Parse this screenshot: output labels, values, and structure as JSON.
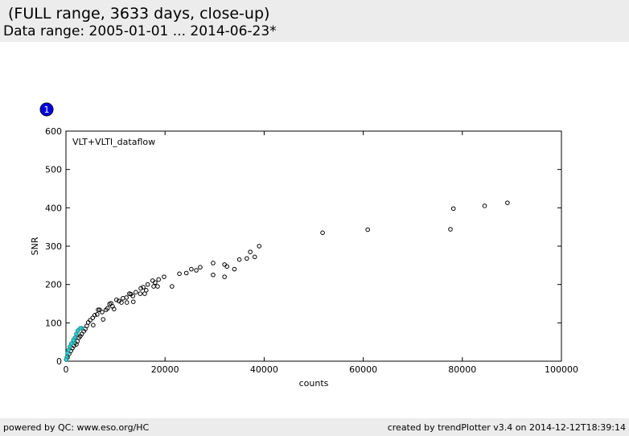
{
  "header": {
    "title": "(FULL range, 3633 days, close-up)",
    "subtitle": "Data range: 2005-01-01 ... 2014-06-23*"
  },
  "badge": "1",
  "footer": {
    "left": "powered by QC: www.eso.org/HC",
    "right": "created by trendPlotter v3.4 on 2014-12-12T18:39:14"
  },
  "chart_data": {
    "type": "scatter",
    "annotation": "VLT+VLTI_dataflow",
    "x_label": "counts",
    "y_label": "SNR",
    "xlim": [
      0,
      100000
    ],
    "ylim": [
      0,
      600
    ],
    "xticks": [
      0,
      20000,
      40000,
      60000,
      80000,
      100000
    ],
    "yticks": [
      0,
      100,
      200,
      300,
      400,
      500,
      600
    ],
    "series": [
      {
        "color": "#000000",
        "x": [
          89100,
          84500,
          78200,
          77600,
          60900,
          51800,
          39000,
          38100,
          37200,
          36500,
          35000,
          34000,
          32500,
          32000,
          32000,
          29700,
          29700,
          27100,
          26300,
          25300,
          24300,
          22900,
          21400,
          19800,
          18700,
          18500,
          18000,
          17500,
          17700,
          16500,
          16200,
          15600,
          15100,
          15000,
          15900,
          14100,
          13500,
          13600,
          13100,
          12800,
          12200,
          12300,
          11500,
          11200,
          10700,
          10200,
          9700,
          9400,
          9100,
          8800,
          8400,
          8100,
          7500,
          7300,
          6800,
          6500,
          6300,
          5800,
          5500,
          5400,
          4900,
          4500,
          4200,
          3900,
          3600,
          3200,
          2900,
          2600,
          2300,
          2100,
          1800,
          1600,
          1300,
          1000,
          650,
          320
        ],
        "values": [
          413,
          405,
          398,
          344,
          343,
          335,
          300,
          272,
          285,
          268,
          265,
          240,
          247,
          252,
          220,
          256,
          225,
          245,
          237,
          240,
          230,
          228,
          195,
          220,
          213,
          195,
          205,
          210,
          195,
          200,
          185,
          193,
          190,
          176,
          176,
          180,
          170,
          155,
          175,
          176,
          166,
          153,
          164,
          153,
          157,
          160,
          136,
          143,
          151,
          149,
          138,
          134,
          109,
          128,
          134,
          134,
          122,
          120,
          94,
          113,
          107,
          101,
          92,
          84,
          78,
          71,
          65,
          61,
          52,
          44,
          48,
          40,
          34,
          27,
          19,
          10
        ]
      },
      {
        "color": "#33cccc",
        "x": [
          3200,
          2900,
          2400,
          2100,
          1800,
          1600,
          1500,
          1100,
          800,
          500,
          320,
          160,
          50
        ],
        "values": [
          86,
          86,
          80,
          71,
          61,
          50,
          55,
          46,
          38,
          29,
          21,
          10,
          4
        ]
      }
    ]
  }
}
